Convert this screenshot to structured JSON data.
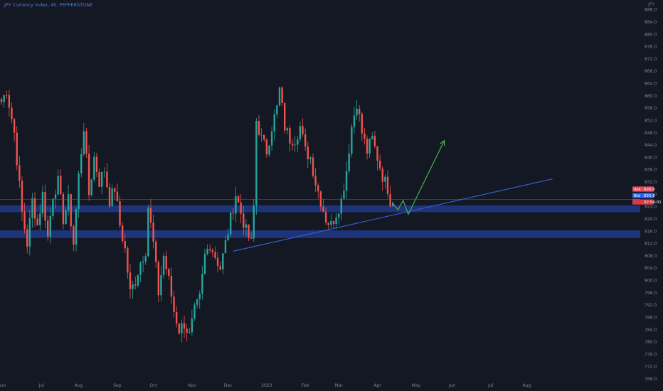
{
  "header": {
    "title": "JPY Currency Index, 4h, PEPPERSTONE",
    "unit": "JPY"
  },
  "colors": {
    "background": "#141823",
    "up": "#26a69a",
    "down": "#ef5350",
    "zone": "#1e3a8a",
    "trendline": "#3a5bd0",
    "projection": "#4caf50",
    "price_line": "#b14a4a"
  },
  "chart_data": {
    "type": "candlestick",
    "title": "JPY Currency Index, 4h, PEPPERSTONE",
    "y_axis_label": "JPY",
    "ylim": [
      768.0,
      890.0
    ],
    "y_ticks": [
      "888.0",
      "884.0",
      "880.0",
      "876.0",
      "872.0",
      "868.0",
      "864.0",
      "860.0",
      "856.0",
      "852.0",
      "848.0",
      "844.0",
      "840.0",
      "836.0",
      "832.0",
      "828.0",
      "824.0",
      "820.0",
      "816.0",
      "812.0",
      "808.0",
      "804.0",
      "800.0",
      "796.0",
      "792.0",
      "788.0",
      "784.0",
      "780.0",
      "776.0",
      "772.0",
      "768.0"
    ],
    "x_ticks": [
      "Jun",
      "Jul",
      "Aug",
      "Sep",
      "Oct",
      "Nov",
      "Dec",
      "2023",
      "Feb",
      "Mar",
      "Apr",
      "May",
      "Jun",
      "Jul",
      "Aug"
    ],
    "x_tick_index": [
      0.5,
      15.5,
      30,
      45,
      59,
      74,
      88,
      103,
      118,
      131,
      146,
      161,
      175,
      190,
      204
    ],
    "anchors": [
      [
        0,
        858
      ],
      [
        2,
        862
      ],
      [
        5,
        848
      ],
      [
        8,
        822
      ],
      [
        10,
        812
      ],
      [
        12,
        826
      ],
      [
        14,
        818
      ],
      [
        16,
        828
      ],
      [
        18,
        814
      ],
      [
        20,
        828
      ],
      [
        22,
        832
      ],
      [
        24,
        820
      ],
      [
        26,
        826
      ],
      [
        28,
        812
      ],
      [
        30,
        834
      ],
      [
        32,
        850
      ],
      [
        34,
        828
      ],
      [
        36,
        840
      ],
      [
        38,
        832
      ],
      [
        40,
        836
      ],
      [
        42,
        826
      ],
      [
        44,
        830
      ],
      [
        46,
        818
      ],
      [
        48,
        810
      ],
      [
        50,
        796
      ],
      [
        52,
        800
      ],
      [
        54,
        806
      ],
      [
        56,
        810
      ],
      [
        57,
        824
      ],
      [
        59,
        812
      ],
      [
        61,
        796
      ],
      [
        63,
        808
      ],
      [
        65,
        800
      ],
      [
        67,
        790
      ],
      [
        69,
        784
      ],
      [
        71,
        786
      ],
      [
        73,
        782
      ],
      [
        75,
        790
      ],
      [
        77,
        794
      ],
      [
        79,
        808
      ],
      [
        81,
        812
      ],
      [
        83,
        808
      ],
      [
        85,
        804
      ],
      [
        87,
        812
      ],
      [
        89,
        820
      ],
      [
        91,
        828
      ],
      [
        93,
        822
      ],
      [
        95,
        816
      ],
      [
        97,
        812
      ],
      [
        98,
        824
      ],
      [
        99,
        852
      ],
      [
        101,
        846
      ],
      [
        103,
        842
      ],
      [
        105,
        850
      ],
      [
        107,
        856
      ],
      [
        108,
        862
      ],
      [
        110,
        850
      ],
      [
        112,
        846
      ],
      [
        114,
        846
      ],
      [
        116,
        850
      ],
      [
        118,
        842
      ],
      [
        120,
        840
      ],
      [
        122,
        832
      ],
      [
        124,
        826
      ],
      [
        126,
        820
      ],
      [
        128,
        818
      ],
      [
        130,
        822
      ],
      [
        132,
        826
      ],
      [
        134,
        836
      ],
      [
        136,
        850
      ],
      [
        138,
        858
      ],
      [
        140,
        848
      ],
      [
        142,
        842
      ],
      [
        144,
        846
      ],
      [
        146,
        840
      ],
      [
        148,
        834
      ],
      [
        150,
        830
      ],
      [
        151,
        826
      ],
      [
        152,
        825.3
      ]
    ],
    "support_zones": [
      [
        822.2,
        824.4
      ],
      [
        813.8,
        816.3
      ]
    ],
    "trendline": {
      "from": [
        90,
        809.5
      ],
      "to": [
        214,
        833.0
      ]
    },
    "projection_path": [
      [
        152,
        825.0
      ],
      [
        154,
        823.0
      ],
      [
        156,
        826.0
      ],
      [
        158,
        821.5
      ],
      [
        172,
        845.5
      ]
    ],
    "current_price_line": 826.4,
    "badges": [
      {
        "label": "Ask",
        "value": "826.0",
        "price": 829.7,
        "color": "#e64a5c"
      },
      {
        "label": "Bid",
        "value": "825.6",
        "price": 827.6,
        "color": "#2962ff"
      },
      {
        "label": "",
        "value": "02:54:01",
        "price": 825.5,
        "color": "#d33a4a"
      }
    ]
  }
}
